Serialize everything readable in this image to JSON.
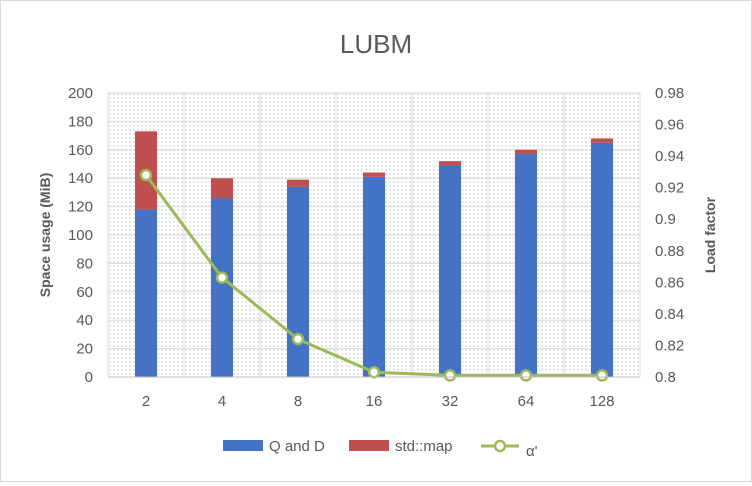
{
  "chart_data": {
    "type": "bar",
    "title": "LUBM",
    "xlabel": "",
    "ylabel": "Space usage (MiB)",
    "y2label": "Load factor",
    "categories": [
      "2",
      "4",
      "8",
      "16",
      "32",
      "64",
      "128"
    ],
    "stacked": true,
    "ylim": [
      0,
      200
    ],
    "yticks": [
      0,
      20,
      40,
      60,
      80,
      100,
      120,
      140,
      160,
      180,
      200
    ],
    "y2lim": [
      0.8,
      0.98
    ],
    "y2ticks": [
      "0.8",
      "0.82",
      "0.84",
      "0.86",
      "0.88",
      "0.9",
      "0.92",
      "0.94",
      "0.96",
      "0.98"
    ],
    "grid": true,
    "legend": "bottom",
    "series": [
      {
        "name": "Q and D",
        "type": "bar",
        "axis": "left",
        "color": "#4472c4",
        "values": [
          118,
          126,
          134,
          141,
          149,
          157,
          165
        ]
      },
      {
        "name": "std::map",
        "type": "bar",
        "axis": "left",
        "color": "#c0504d",
        "values": [
          55,
          14,
          5,
          3,
          3,
          3,
          3
        ]
      },
      {
        "name": "α'",
        "type": "line",
        "axis": "right",
        "color": "#9bbb59",
        "values": [
          0.928,
          0.863,
          0.824,
          0.803,
          0.801,
          0.801,
          0.801
        ]
      }
    ]
  }
}
